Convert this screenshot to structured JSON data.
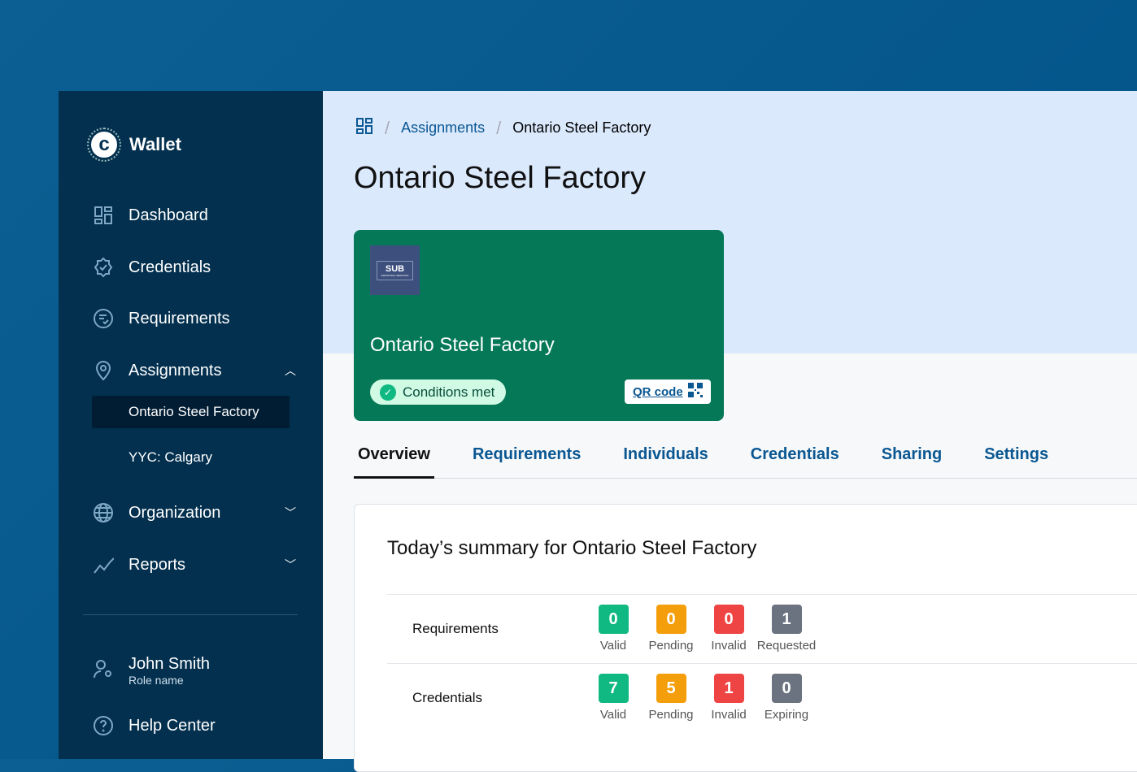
{
  "sidebar": {
    "brand": "Wallet",
    "items": [
      {
        "label": "Dashboard",
        "icon": "dashboard-icon"
      },
      {
        "label": "Credentials",
        "icon": "badge-check-icon"
      },
      {
        "label": "Requirements",
        "icon": "checklist-icon"
      },
      {
        "label": "Assignments",
        "icon": "map-pin-icon",
        "expanded": true,
        "children": [
          "Ontario Steel Factory",
          "YYC: Calgary"
        ]
      },
      {
        "label": "Organization",
        "icon": "globe-icon"
      },
      {
        "label": "Reports",
        "icon": "chart-line-icon"
      }
    ],
    "user": {
      "name": "John Smith",
      "role": "Role name"
    },
    "help": "Help Center"
  },
  "breadcrumb": [
    "Assignments",
    "Ontario Steel Factory"
  ],
  "page_title": "Ontario Steel Factory",
  "card": {
    "logo_text": "SUB",
    "logo_subtext": "INDUSTRIAL SERVICES",
    "title": "Ontario Steel Factory",
    "status": "Conditions met",
    "qr_label": "QR code"
  },
  "tabs": [
    "Overview",
    "Requirements",
    "Individuals",
    "Credentials",
    "Sharing",
    "Settings"
  ],
  "summary": {
    "title": "Today’s summary for Ontario Steel Factory",
    "rows": [
      {
        "label": "Requirements",
        "stats": [
          {
            "value": "0",
            "label": "Valid"
          },
          {
            "value": "0",
            "label": "Pending"
          },
          {
            "value": "0",
            "label": "Invalid"
          },
          {
            "value": "1",
            "label": "Requested"
          }
        ]
      },
      {
        "label": "Credentials",
        "stats": [
          {
            "value": "7",
            "label": "Valid"
          },
          {
            "value": "5",
            "label": "Pending"
          },
          {
            "value": "1",
            "label": "Invalid"
          },
          {
            "value": "0",
            "label": "Expiring"
          }
        ]
      }
    ]
  },
  "colors": {
    "valid": "#10b981",
    "pending": "#f59e0b",
    "invalid": "#ef4444",
    "neutral": "#6b7280",
    "card": "#047857",
    "sidebar": "#03304f"
  }
}
